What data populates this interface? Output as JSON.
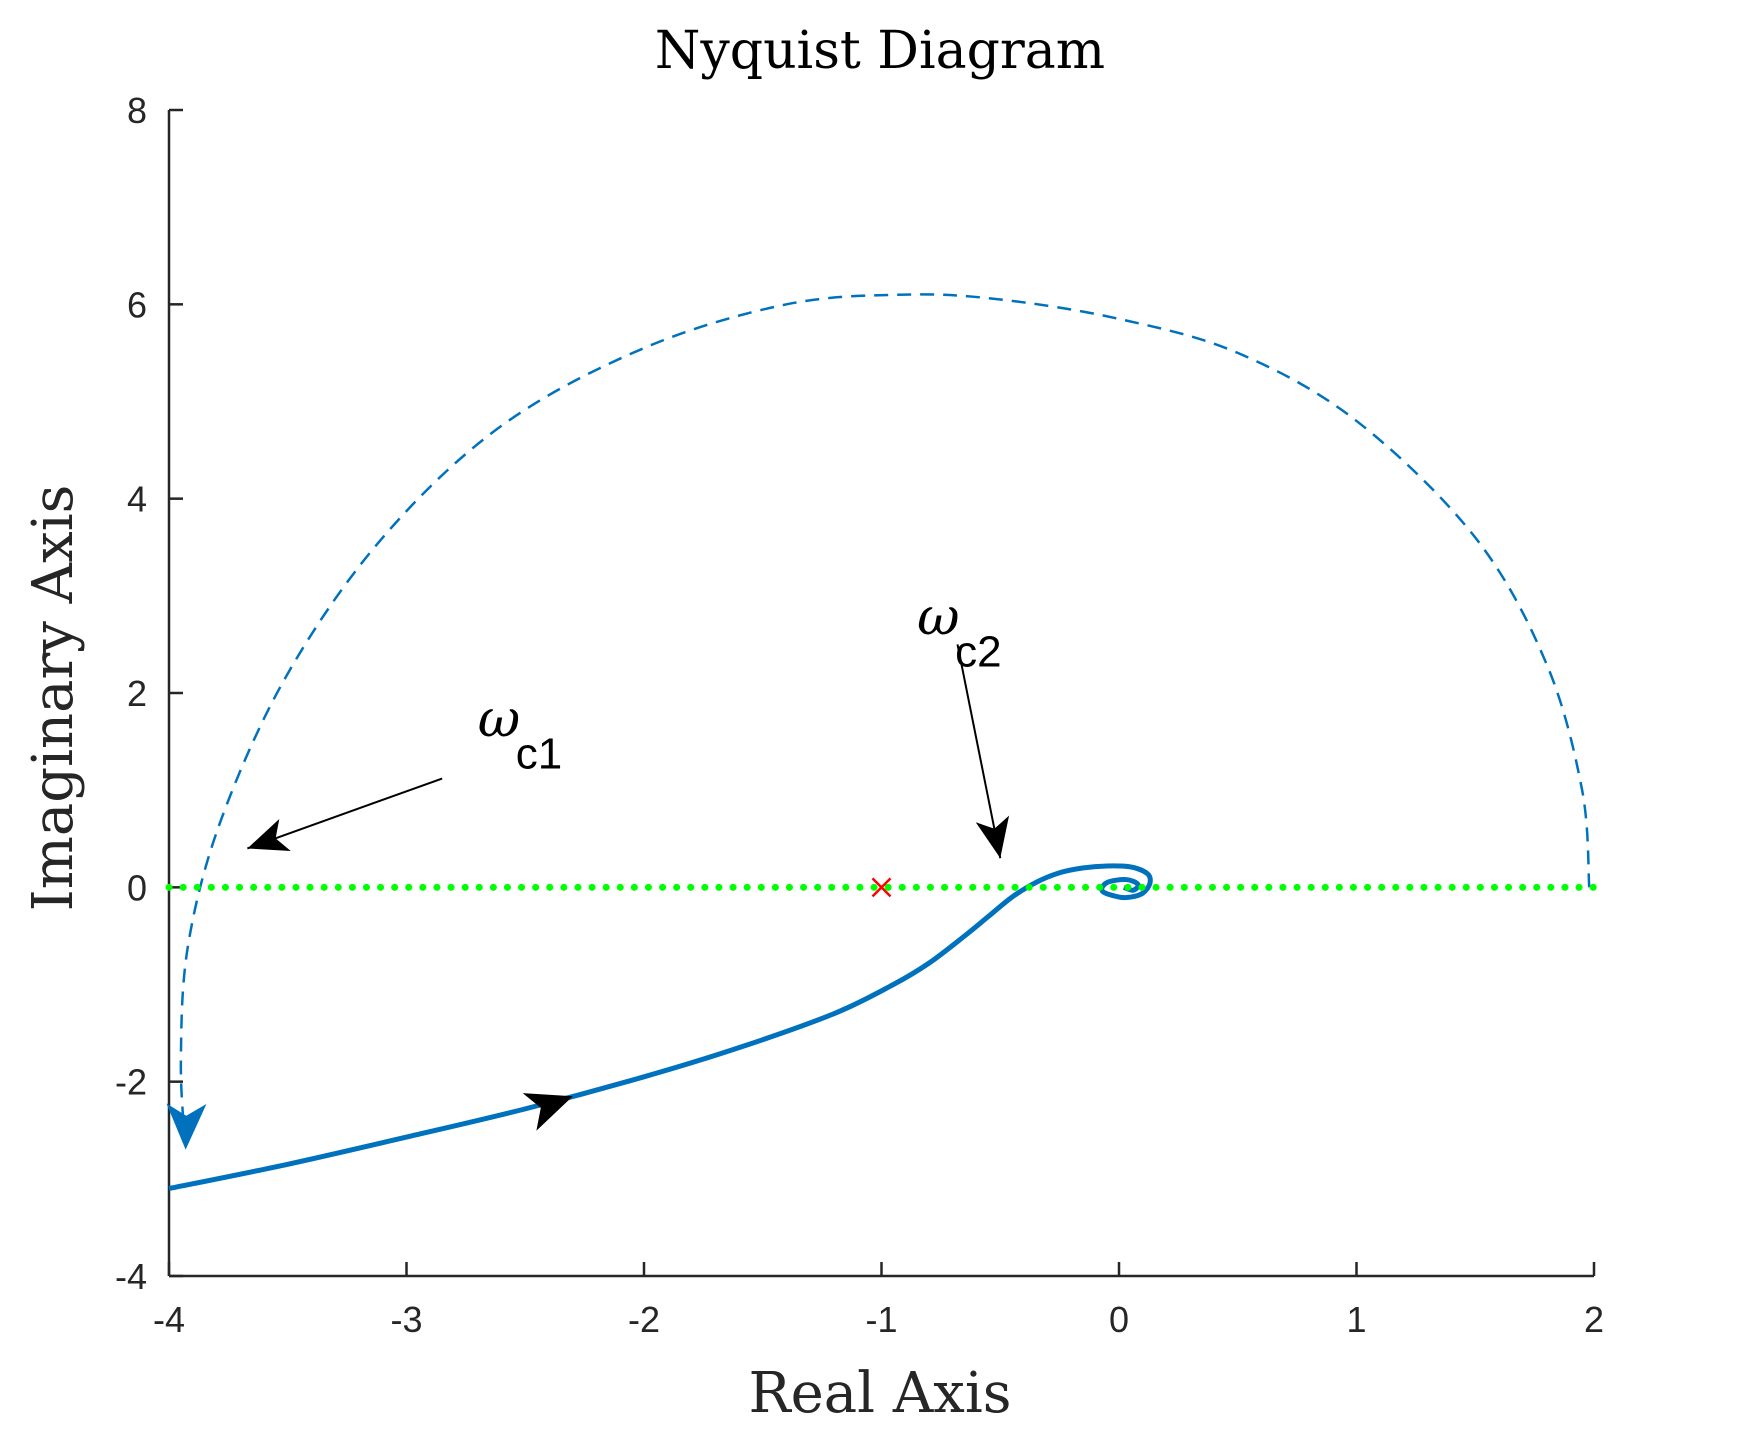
{
  "chart_data": {
    "type": "line",
    "title": "Nyquist Diagram",
    "xlabel": "Real Axis",
    "ylabel": "Imaginary Axis",
    "xlim": [
      -4,
      2
    ],
    "ylim": [
      -4,
      8
    ],
    "xticks": [
      -4,
      -3,
      -2,
      -1,
      0,
      1,
      2
    ],
    "yticks": [
      -4,
      -2,
      0,
      2,
      4,
      6,
      8
    ],
    "xtick_labels": [
      "-4",
      "-3",
      "-2",
      "-1",
      "0",
      "1",
      "2"
    ],
    "ytick_labels": [
      "-4",
      "-2",
      "0",
      "2",
      "4",
      "6",
      "8"
    ],
    "grid": false,
    "series": [
      {
        "style": "solid",
        "color": "#0072BD",
        "x": [
          -4.0,
          -3.5,
          -3.0,
          -2.5,
          -2.0,
          -1.6,
          -1.2,
          -0.95,
          -0.8,
          -0.65,
          -0.55,
          -0.45,
          -0.35,
          -0.25,
          -0.15,
          -0.05,
          0.05,
          0.12,
          0.13,
          0.1,
          0.05,
          0.0,
          -0.07,
          -0.05,
          0.03,
          0.08,
          0.06,
          0.02
        ],
        "y": [
          -3.1,
          -2.85,
          -2.57,
          -2.28,
          -1.95,
          -1.65,
          -1.3,
          -1.0,
          -0.78,
          -0.5,
          -0.3,
          -0.1,
          0.05,
          0.15,
          0.2,
          0.22,
          0.21,
          0.14,
          0.04,
          -0.06,
          -0.1,
          -0.1,
          -0.04,
          0.05,
          0.08,
          0.03,
          -0.03,
          0.0
        ]
      },
      {
        "style": "dashed",
        "color": "#0072BD",
        "x": [
          1.98,
          1.95,
          1.8,
          1.5,
          1.0,
          0.5,
          0.0,
          -0.5,
          -0.9,
          -1.4,
          -2.0,
          -2.6,
          -3.1,
          -3.5,
          -3.78,
          -3.92,
          -3.95,
          -3.93
        ],
        "y": [
          0.0,
          1.0,
          2.3,
          3.6,
          4.8,
          5.5,
          5.85,
          6.05,
          6.1,
          6.0,
          5.55,
          4.75,
          3.6,
          2.2,
          0.7,
          -0.6,
          -1.8,
          -2.7
        ]
      },
      {
        "style": "dotted",
        "color": "#00FF00",
        "x": [
          -4,
          2
        ],
        "y": [
          0,
          0
        ]
      }
    ],
    "markers": [
      {
        "symbol": "x",
        "color": "#FF0000",
        "x": -1,
        "y": 0
      }
    ],
    "direction_arrows": [
      {
        "x": -2.3,
        "y": -2.15,
        "angle_deg": 20,
        "color": "#000000"
      },
      {
        "x": -3.93,
        "y": -2.7,
        "angle_deg": -91,
        "color": "#0072BD"
      }
    ],
    "annotations": [
      {
        "symbol": "ω",
        "subscript": "c1",
        "text_x": -2.7,
        "text_y": 1.55,
        "arrow_from": [
          -2.85,
          1.12
        ],
        "arrow_to": [
          -3.67,
          0.4
        ]
      },
      {
        "symbol": "ω",
        "subscript": "c2",
        "text_x": -0.85,
        "text_y": 2.6,
        "arrow_from": [
          -0.68,
          2.5
        ],
        "arrow_to": [
          -0.5,
          0.3
        ]
      }
    ]
  }
}
